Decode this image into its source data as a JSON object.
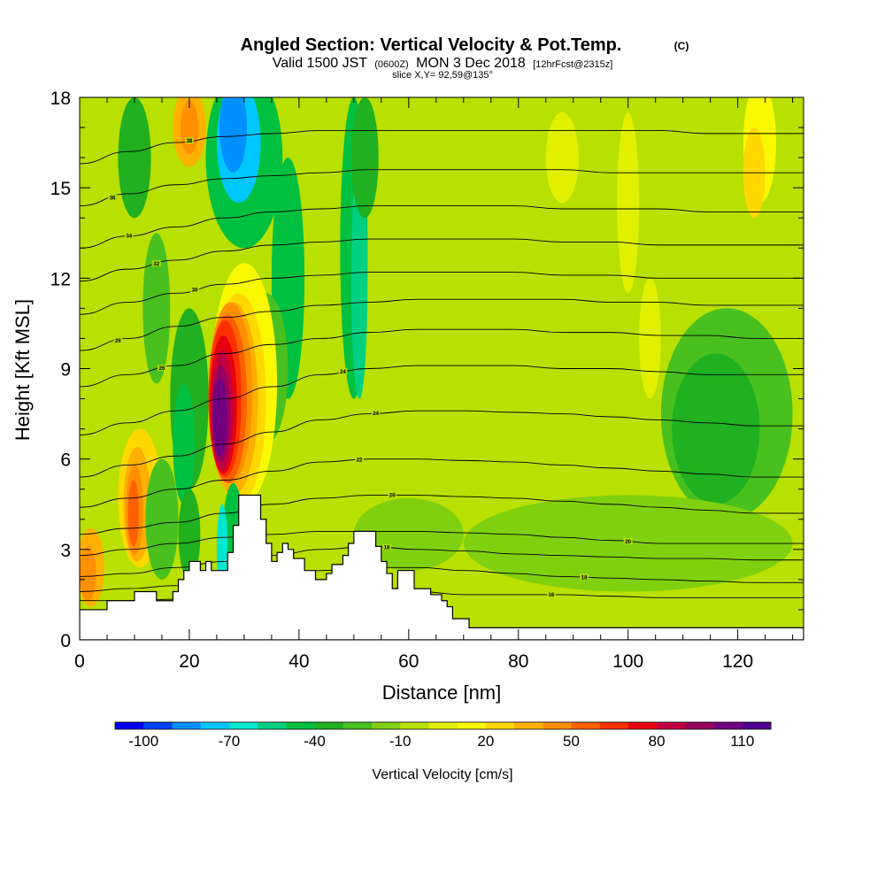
{
  "chart_data": {
    "type": "heatmap",
    "title": "Angled Section: Vertical Velocity & Pot.Temp.",
    "title_suffix": "(C)",
    "subtitle": {
      "valid": "Valid 1500 JST",
      "zulu": "(0600Z)",
      "date": "MON 3 Dec 2018",
      "forecast": "[12hrFcst@2315z]"
    },
    "slice_label": "slice X,Y= 92,59@135°",
    "xlabel": "Distance [nm]",
    "ylabel": "Height [Kft MSL]",
    "xlim": [
      0,
      132
    ],
    "ylim": [
      0,
      18
    ],
    "x_ticks": [
      "0",
      "20",
      "40",
      "60",
      "80",
      "100",
      "120"
    ],
    "y_ticks": [
      "0",
      "3",
      "6",
      "9",
      "12",
      "15",
      "18"
    ],
    "colorbar": {
      "label": "Vertical Velocity [cm/s]",
      "tick_labels": [
        "-100",
        "-70",
        "-40",
        "-10",
        "20",
        "50",
        "80",
        "110"
      ],
      "colors": [
        "#0000ee",
        "#0040ff",
        "#0090ff",
        "#00c8ff",
        "#00e8d0",
        "#00d080",
        "#00c040",
        "#20b020",
        "#48c020",
        "#80d010",
        "#b8e000",
        "#e0f000",
        "#f8f800",
        "#ffd800",
        "#ffb000",
        "#ff9000",
        "#ff6000",
        "#ff3000",
        "#e80010",
        "#c00040",
        "#980060",
        "#700080",
        "#500090"
      ]
    },
    "terrain": [
      [
        0,
        1.0
      ],
      [
        4,
        1.0
      ],
      [
        5,
        1.3
      ],
      [
        9,
        1.3
      ],
      [
        10,
        1.6
      ],
      [
        13,
        1.6
      ],
      [
        14,
        1.3
      ],
      [
        16,
        1.3
      ],
      [
        17,
        1.6
      ],
      [
        18,
        2.0
      ],
      [
        19,
        2.3
      ],
      [
        20,
        2.6
      ],
      [
        21,
        2.6
      ],
      [
        22,
        2.3
      ],
      [
        23,
        2.6
      ],
      [
        24,
        2.3
      ],
      [
        26,
        2.3
      ],
      [
        27,
        2.9
      ],
      [
        28,
        3.8
      ],
      [
        29,
        4.8
      ],
      [
        32,
        4.8
      ],
      [
        33,
        4.0
      ],
      [
        34,
        3.2
      ],
      [
        35,
        2.6
      ],
      [
        36,
        2.9
      ],
      [
        37,
        3.2
      ],
      [
        38,
        3.0
      ],
      [
        39,
        2.7
      ],
      [
        41,
        2.3
      ],
      [
        43,
        2.0
      ],
      [
        45,
        2.2
      ],
      [
        46,
        2.5
      ],
      [
        48,
        2.8
      ],
      [
        49,
        3.2
      ],
      [
        50,
        3.6
      ],
      [
        53,
        3.6
      ],
      [
        54,
        3.1
      ],
      [
        55,
        2.6
      ],
      [
        56,
        2.2
      ],
      [
        57,
        1.7
      ],
      [
        58,
        2.3
      ],
      [
        60,
        2.3
      ],
      [
        61,
        1.7
      ],
      [
        63,
        1.7
      ],
      [
        64,
        1.5
      ],
      [
        66,
        1.3
      ],
      [
        67,
        1.1
      ],
      [
        68,
        0.7
      ],
      [
        71,
        0.4
      ],
      [
        132,
        0.4
      ]
    ],
    "isotherms": [
      {
        "label": "16",
        "xl": 86,
        "y": [
          1.3,
          1.3,
          1.35,
          1.4,
          1.5,
          1.6,
          1.7,
          1.6,
          1.5,
          1.5,
          1.5,
          1.45,
          1.4,
          1.4,
          1.4,
          1.4
        ]
      },
      {
        "label": "18",
        "xl": 92,
        "y": [
          1.6,
          1.7,
          1.8,
          1.9,
          2.1,
          2.3,
          2.4,
          2.4,
          2.3,
          2.2,
          2.1,
          2.05,
          2.0,
          1.95,
          1.9,
          1.9
        ]
      },
      {
        "label": "18",
        "xl": 56,
        "y": [
          2.1,
          2.2,
          2.4,
          2.6,
          2.8,
          3.0,
          3.1,
          3.0,
          2.95,
          2.85,
          2.8,
          2.75,
          2.7,
          2.7,
          2.65,
          2.65
        ]
      },
      {
        "label": "20",
        "xl": 100,
        "y": [
          2.8,
          3.0,
          3.2,
          3.4,
          3.5,
          3.6,
          3.6,
          3.6,
          3.55,
          3.5,
          3.4,
          3.3,
          3.2,
          3.2,
          3.2,
          3.2
        ]
      },
      {
        "label": "20",
        "xl": 57,
        "y": [
          3.5,
          3.7,
          3.9,
          4.2,
          4.5,
          4.7,
          4.8,
          4.8,
          4.75,
          4.7,
          4.6,
          4.5,
          4.4,
          4.3,
          4.2,
          4.2
        ]
      },
      {
        "label": "22",
        "xl": 51,
        "y": [
          4.4,
          4.7,
          5.0,
          5.3,
          5.6,
          5.9,
          6.0,
          6.0,
          5.95,
          5.9,
          5.8,
          5.7,
          5.6,
          5.5,
          5.4,
          5.4
        ]
      },
      {
        "label": "24",
        "xl": 54,
        "y": [
          5.4,
          5.8,
          6.1,
          6.5,
          6.9,
          7.3,
          7.5,
          7.6,
          7.6,
          7.55,
          7.5,
          7.4,
          7.3,
          7.2,
          7.1,
          7.1
        ]
      },
      {
        "label": "24",
        "xl": 48,
        "y": [
          6.8,
          7.2,
          7.6,
          8.0,
          8.4,
          8.8,
          9.0,
          9.1,
          9.1,
          9.1,
          9.0,
          9.0,
          8.9,
          8.8,
          8.8,
          8.8
        ]
      },
      {
        "label": "26",
        "xl": 15,
        "y": [
          8.4,
          8.8,
          9.1,
          9.5,
          9.8,
          10.0,
          10.2,
          10.3,
          10.3,
          10.3,
          10.2,
          10.2,
          10.1,
          10.1,
          10.0,
          10.0
        ]
      },
      {
        "label": "26",
        "xl": 7,
        "y": [
          9.6,
          10.0,
          10.4,
          10.7,
          10.9,
          11.1,
          11.2,
          11.3,
          11.3,
          11.3,
          11.3,
          11.2,
          11.2,
          11.1,
          11.1,
          11.1
        ]
      },
      {
        "label": "30",
        "xl": 21,
        "y": [
          10.8,
          11.2,
          11.5,
          11.8,
          12.0,
          12.1,
          12.2,
          12.2,
          12.2,
          12.2,
          12.1,
          12.1,
          12.0,
          12.0,
          12.0,
          12.0
        ]
      },
      {
        "label": "32",
        "xl": 14,
        "y": [
          11.9,
          12.3,
          12.6,
          12.9,
          13.1,
          13.2,
          13.3,
          13.3,
          13.3,
          13.3,
          13.2,
          13.2,
          13.1,
          13.1,
          13.1,
          13.1
        ]
      },
      {
        "label": "34",
        "xl": 9,
        "y": [
          13.0,
          13.4,
          13.7,
          14.0,
          14.2,
          14.3,
          14.4,
          14.4,
          14.4,
          14.4,
          14.3,
          14.3,
          14.3,
          14.2,
          14.2,
          14.2
        ]
      },
      {
        "label": "36",
        "xl": 6,
        "y": [
          14.4,
          14.8,
          15.1,
          15.3,
          15.4,
          15.5,
          15.6,
          15.6,
          15.6,
          15.6,
          15.6,
          15.5,
          15.5,
          15.5,
          15.5,
          15.5
        ]
      },
      {
        "label": "38",
        "xl": 20,
        "y": [
          15.8,
          16.2,
          16.5,
          16.7,
          16.8,
          16.9,
          16.9,
          16.9,
          16.9,
          16.9,
          16.9,
          16.9,
          16.9,
          16.8,
          16.8,
          16.8
        ]
      }
    ]
  }
}
